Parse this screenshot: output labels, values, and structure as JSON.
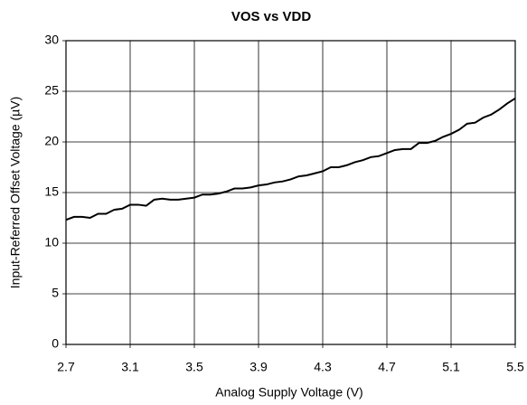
{
  "chart_data": {
    "type": "line",
    "title": "VOS vs VDD",
    "xlabel": "Analog Supply Voltage (V)",
    "ylabel": "Input-Referred Offset Voltage (µV)",
    "x": [
      2.7,
      2.75,
      2.8,
      2.85,
      2.9,
      2.95,
      3.0,
      3.05,
      3.1,
      3.15,
      3.2,
      3.25,
      3.3,
      3.35,
      3.4,
      3.45,
      3.5,
      3.55,
      3.6,
      3.65,
      3.7,
      3.75,
      3.8,
      3.85,
      3.9,
      3.95,
      4.0,
      4.05,
      4.1,
      4.15,
      4.2,
      4.25,
      4.3,
      4.35,
      4.4,
      4.45,
      4.5,
      4.55,
      4.6,
      4.65,
      4.7,
      4.75,
      4.8,
      4.85,
      4.9,
      4.95,
      5.0,
      5.05,
      5.1,
      5.15,
      5.2,
      5.25,
      5.3,
      5.35,
      5.4,
      5.45,
      5.5
    ],
    "series": [
      {
        "color": "#000000",
        "values": [
          12.3,
          12.6,
          12.6,
          12.5,
          12.9,
          12.9,
          13.3,
          13.4,
          13.8,
          13.8,
          13.7,
          14.3,
          14.4,
          14.3,
          14.3,
          14.4,
          14.5,
          14.8,
          14.8,
          14.9,
          15.1,
          15.4,
          15.4,
          15.5,
          15.7,
          15.8,
          16.0,
          16.1,
          16.3,
          16.6,
          16.7,
          16.9,
          17.1,
          17.5,
          17.5,
          17.7,
          18.0,
          18.2,
          18.5,
          18.6,
          18.9,
          19.2,
          19.3,
          19.3,
          19.9,
          19.9,
          20.1,
          20.5,
          20.8,
          21.2,
          21.8,
          21.9,
          22.4,
          22.7,
          23.2,
          23.8,
          24.3
        ]
      }
    ],
    "xlim": [
      2.7,
      5.5
    ],
    "xticks": [
      2.7,
      3.1,
      3.5,
      3.9,
      4.3,
      4.7,
      5.1,
      5.5
    ],
    "ylim": [
      0,
      30
    ],
    "yticks": [
      0,
      5,
      10,
      15,
      20,
      25,
      30
    ],
    "grid": true
  }
}
